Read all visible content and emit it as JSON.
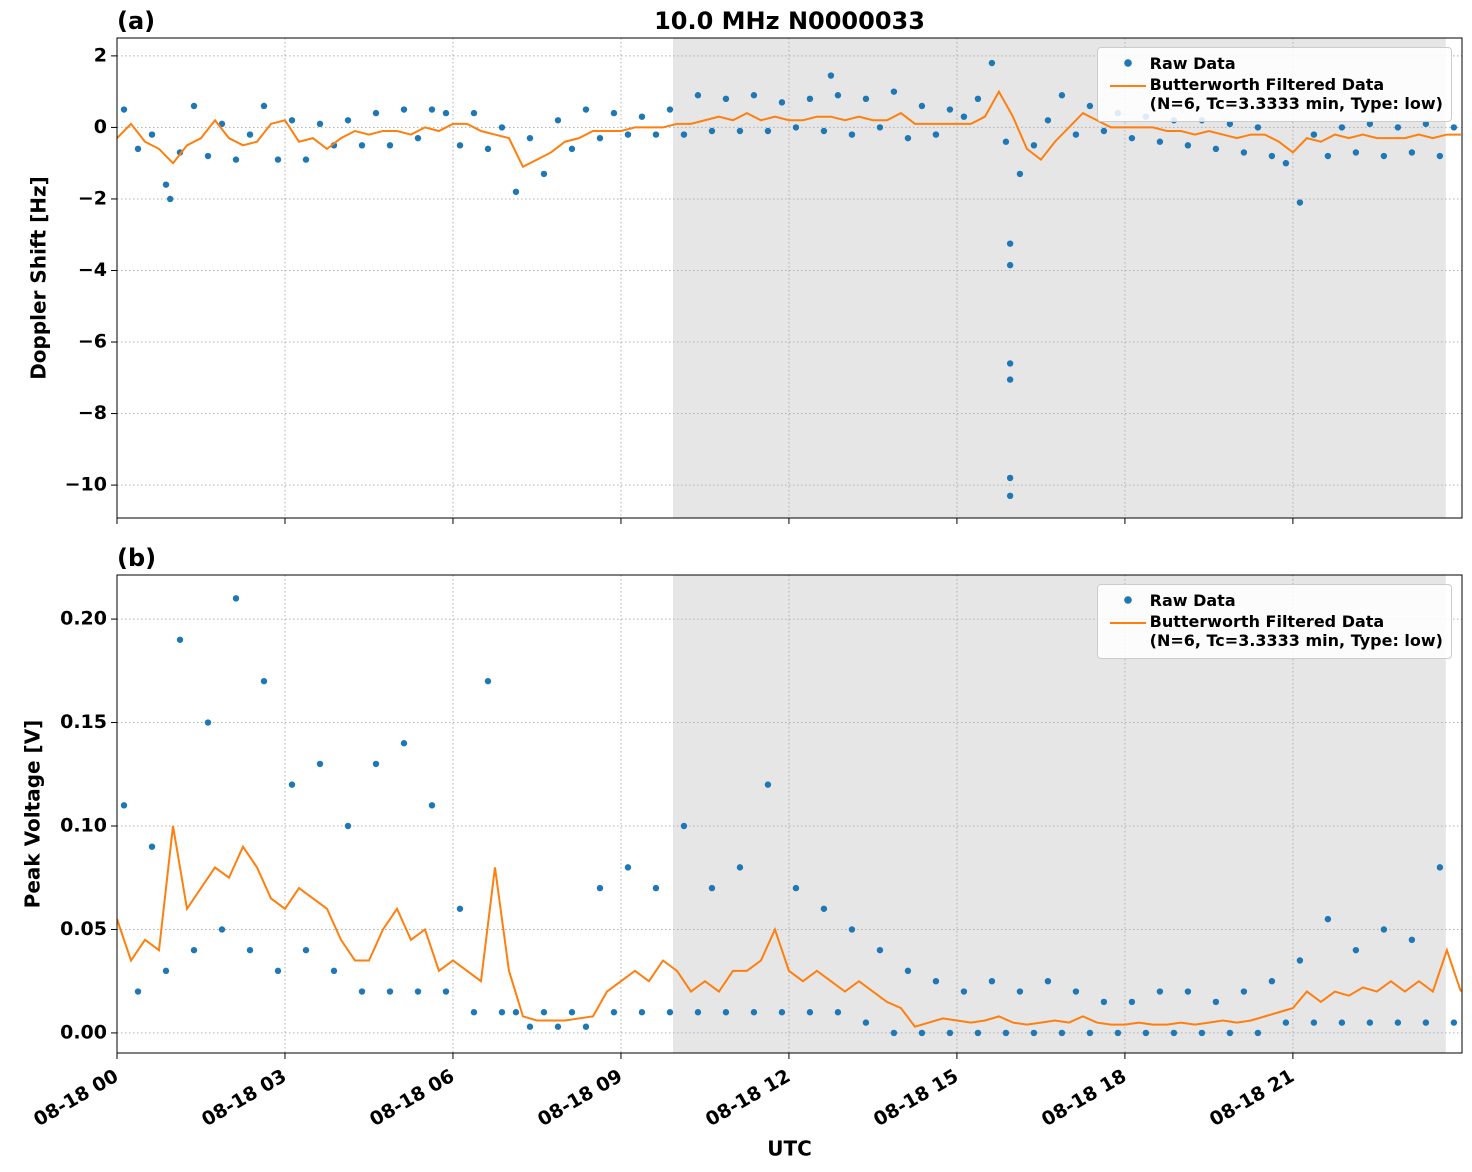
{
  "chart_data": [
    {
      "type": "scatter-line",
      "panel_label": "(a)",
      "title": "10.0 MHz N0000033",
      "ylabel": "Doppler Shift [Hz]",
      "xlim": [
        0,
        24.02
      ],
      "ylim": [
        -10.92,
        2.5
      ],
      "yticks": [
        {
          "value": -10,
          "label": "−10"
        },
        {
          "value": -8,
          "label": "−8"
        },
        {
          "value": -6,
          "label": "−6"
        },
        {
          "value": -4,
          "label": "−4"
        },
        {
          "value": -2,
          "label": "−2"
        },
        0,
        2
      ],
      "grid": true,
      "legend": "upper right",
      "shaded_xspan": [
        9.93,
        23.73
      ],
      "shade_color": "#e6e6e6",
      "series": [
        {
          "name": "Raw Data",
          "kind": "scatter",
          "color": "#1f77b4",
          "x": [
            0.125,
            0.375,
            0.625,
            0.875,
            1.125,
            1.375,
            1.625,
            1.875,
            2.125,
            2.375,
            2.625,
            2.875,
            3.125,
            3.375,
            3.625,
            3.875,
            4.125,
            4.375,
            4.625,
            4.875,
            5.125,
            5.375,
            5.625,
            5.875,
            6.125,
            6.375,
            6.625,
            6.875,
            7.125,
            7.375,
            7.625,
            7.875,
            8.125,
            8.375,
            8.625,
            8.875,
            9.125,
            9.375,
            9.625,
            9.875,
            10.125,
            10.375,
            10.625,
            10.875,
            11.125,
            11.375,
            11.625,
            11.875,
            12.125,
            12.375,
            12.625,
            12.875,
            13.125,
            13.375,
            13.625,
            13.875,
            14.125,
            14.375,
            14.625,
            14.875,
            15.125,
            15.375,
            15.625,
            15.875,
            16.125,
            16.375,
            16.625,
            16.875,
            17.125,
            17.375,
            17.625,
            17.875,
            18.125,
            18.375,
            18.625,
            18.875,
            19.125,
            19.375,
            19.625,
            19.875,
            20.125,
            20.375,
            20.625,
            20.875,
            21.125,
            21.375,
            21.625,
            21.875,
            22.125,
            22.375,
            22.625,
            22.875,
            23.125,
            23.375,
            23.625,
            23.875,
            15.95,
            15.95,
            15.95,
            15.95,
            15.95,
            15.95,
            12.75,
            0.95
          ],
          "values": [
            0.5,
            -0.6,
            -0.2,
            -1.6,
            -0.7,
            0.6,
            -0.8,
            0.1,
            -0.9,
            -0.2,
            0.6,
            -0.9,
            0.2,
            -0.9,
            0.1,
            -0.5,
            0.2,
            -0.5,
            0.4,
            -0.5,
            0.5,
            -0.3,
            0.5,
            0.4,
            -0.5,
            0.4,
            -0.6,
            0.0,
            -1.8,
            -0.3,
            -1.3,
            0.2,
            -0.6,
            0.5,
            -0.3,
            0.4,
            -0.2,
            0.3,
            -0.2,
            0.5,
            -0.2,
            0.9,
            -0.1,
            0.8,
            -0.1,
            0.9,
            -0.1,
            0.7,
            0.0,
            0.8,
            -0.1,
            0.9,
            -0.2,
            0.8,
            0.0,
            1.0,
            -0.3,
            0.6,
            -0.2,
            0.5,
            0.3,
            0.8,
            1.8,
            -0.4,
            -1.3,
            -0.5,
            0.2,
            0.9,
            -0.2,
            0.6,
            -0.1,
            0.4,
            -0.3,
            0.3,
            -0.4,
            0.2,
            -0.5,
            0.2,
            -0.6,
            0.1,
            -0.7,
            0.0,
            -0.8,
            -1.0,
            -2.1,
            -0.2,
            -0.8,
            0.0,
            -0.7,
            0.1,
            -0.8,
            0.0,
            -0.7,
            0.1,
            -0.8,
            0.0,
            -3.25,
            -3.85,
            -6.6,
            -7.05,
            -9.8,
            -10.3,
            1.45,
            -2.0
          ]
        },
        {
          "name": "Butterworth Filtered Data\n(N=6, Tc=3.3333 min, Type: low)",
          "kind": "line",
          "color": "#ff7f0e",
          "x": [
            0,
            0.25,
            0.5,
            0.75,
            1,
            1.25,
            1.5,
            1.75,
            2,
            2.25,
            2.5,
            2.75,
            3,
            3.25,
            3.5,
            3.75,
            4,
            4.25,
            4.5,
            4.75,
            5,
            5.25,
            5.5,
            5.75,
            6,
            6.25,
            6.5,
            6.75,
            7,
            7.25,
            7.5,
            7.75,
            8,
            8.25,
            8.5,
            8.75,
            9,
            9.25,
            9.5,
            9.75,
            10,
            10.25,
            10.5,
            10.75,
            11,
            11.25,
            11.5,
            11.75,
            12,
            12.25,
            12.5,
            12.75,
            13,
            13.25,
            13.5,
            13.75,
            14,
            14.25,
            14.5,
            14.75,
            15,
            15.25,
            15.5,
            15.75,
            16,
            16.25,
            16.5,
            16.75,
            17,
            17.25,
            17.5,
            17.75,
            18,
            18.25,
            18.5,
            18.75,
            19,
            19.25,
            19.5,
            19.75,
            20,
            20.25,
            20.5,
            20.75,
            21,
            21.25,
            21.5,
            21.75,
            22,
            22.25,
            22.5,
            22.75,
            23,
            23.25,
            23.5,
            23.75,
            24
          ],
          "values": [
            -0.3,
            0.1,
            -0.4,
            -0.6,
            -1.0,
            -0.5,
            -0.3,
            0.2,
            -0.3,
            -0.5,
            -0.4,
            0.1,
            0.2,
            -0.4,
            -0.3,
            -0.6,
            -0.3,
            -0.1,
            -0.2,
            -0.1,
            -0.1,
            -0.2,
            0.0,
            -0.1,
            0.1,
            0.1,
            -0.1,
            -0.2,
            -0.3,
            -1.1,
            -0.9,
            -0.7,
            -0.4,
            -0.3,
            -0.1,
            -0.1,
            -0.1,
            0.0,
            0.0,
            0.0,
            0.1,
            0.1,
            0.2,
            0.3,
            0.2,
            0.4,
            0.2,
            0.3,
            0.2,
            0.2,
            0.3,
            0.3,
            0.2,
            0.3,
            0.2,
            0.2,
            0.4,
            0.1,
            0.1,
            0.1,
            0.1,
            0.1,
            0.3,
            1.0,
            0.3,
            -0.6,
            -0.9,
            -0.4,
            0.0,
            0.4,
            0.2,
            0.0,
            0.0,
            0.0,
            0.0,
            -0.1,
            -0.1,
            -0.2,
            -0.1,
            -0.2,
            -0.3,
            -0.2,
            -0.2,
            -0.4,
            -0.7,
            -0.3,
            -0.4,
            -0.2,
            -0.3,
            -0.2,
            -0.3,
            -0.3,
            -0.3,
            -0.2,
            -0.3,
            -0.2,
            -0.2
          ]
        }
      ]
    },
    {
      "type": "scatter-line",
      "panel_label": "(b)",
      "ylabel": "Peak Voltage [V]",
      "xlabel": "UTC",
      "xlim": [
        0,
        24.02
      ],
      "ylim": [
        -0.0097,
        0.2213
      ],
      "xticks": [
        {
          "value": 0,
          "label": "08-18 00"
        },
        {
          "value": 3,
          "label": "08-18 03"
        },
        {
          "value": 6,
          "label": "08-18 06"
        },
        {
          "value": 9,
          "label": "08-18 09"
        },
        {
          "value": 12,
          "label": "08-18 12"
        },
        {
          "value": 15,
          "label": "08-18 15"
        },
        {
          "value": 18,
          "label": "08-18 18"
        },
        {
          "value": 21,
          "label": "08-18 21"
        }
      ],
      "yticks": [
        {
          "value": 0,
          "label": "0.00"
        },
        {
          "value": 0.05,
          "label": "0.05"
        },
        {
          "value": 0.1,
          "label": "0.10"
        },
        0.15,
        {
          "value": 0.2,
          "label": "0.20"
        }
      ],
      "grid": true,
      "legend": "upper right",
      "shaded_xspan": [
        9.93,
        23.73
      ],
      "shade_color": "#e6e6e6",
      "series": [
        {
          "name": "Raw Data",
          "kind": "scatter",
          "color": "#1f77b4",
          "x": [
            0.125,
            0.375,
            0.625,
            0.875,
            1.125,
            1.375,
            1.625,
            1.875,
            2.125,
            2.375,
            2.625,
            2.875,
            3.125,
            3.375,
            3.625,
            3.875,
            4.125,
            4.375,
            4.625,
            4.875,
            5.125,
            5.375,
            5.625,
            5.875,
            6.125,
            6.375,
            6.625,
            6.875,
            7.125,
            7.375,
            7.625,
            7.875,
            8.125,
            8.375,
            8.625,
            8.875,
            9.125,
            9.375,
            9.625,
            9.875,
            10.125,
            10.375,
            10.625,
            10.875,
            11.125,
            11.375,
            11.625,
            11.875,
            12.125,
            12.375,
            12.625,
            12.875,
            13.125,
            13.375,
            13.625,
            13.875,
            14.125,
            14.375,
            14.625,
            14.875,
            15.125,
            15.375,
            15.625,
            15.875,
            16.125,
            16.375,
            16.625,
            16.875,
            17.125,
            17.375,
            17.625,
            17.875,
            18.125,
            18.375,
            18.625,
            18.875,
            19.125,
            19.375,
            19.625,
            19.875,
            20.125,
            20.375,
            20.625,
            20.875,
            21.125,
            21.375,
            21.625,
            21.875,
            22.125,
            22.375,
            22.625,
            22.875,
            23.125,
            23.375,
            23.625,
            23.875
          ],
          "values": [
            0.11,
            0.02,
            0.09,
            0.03,
            0.19,
            0.04,
            0.15,
            0.05,
            0.21,
            0.04,
            0.17,
            0.03,
            0.12,
            0.04,
            0.13,
            0.03,
            0.1,
            0.02,
            0.13,
            0.02,
            0.14,
            0.02,
            0.11,
            0.02,
            0.06,
            0.01,
            0.17,
            0.01,
            0.01,
            0.003,
            0.01,
            0.003,
            0.01,
            0.003,
            0.07,
            0.01,
            0.08,
            0.01,
            0.07,
            0.01,
            0.1,
            0.01,
            0.07,
            0.01,
            0.08,
            0.01,
            0.12,
            0.01,
            0.07,
            0.01,
            0.06,
            0.01,
            0.05,
            0.005,
            0.04,
            0.0,
            0.03,
            0.0,
            0.025,
            0.0,
            0.02,
            0.0,
            0.025,
            0.0,
            0.02,
            0.0,
            0.025,
            0.0,
            0.02,
            0.0,
            0.015,
            0.0,
            0.015,
            0.0,
            0.02,
            0.0,
            0.02,
            0.0,
            0.015,
            0.0,
            0.02,
            0.0,
            0.025,
            0.005,
            0.035,
            0.005,
            0.055,
            0.005,
            0.04,
            0.005,
            0.05,
            0.005,
            0.045,
            0.005,
            0.08,
            0.005
          ]
        },
        {
          "name": "Butterworth Filtered Data\n(N=6, Tc=3.3333 min, Type: low)",
          "kind": "line",
          "color": "#ff7f0e",
          "x": [
            0,
            0.25,
            0.5,
            0.75,
            1,
            1.25,
            1.5,
            1.75,
            2,
            2.25,
            2.5,
            2.75,
            3,
            3.25,
            3.5,
            3.75,
            4,
            4.25,
            4.5,
            4.75,
            5,
            5.25,
            5.5,
            5.75,
            6,
            6.25,
            6.5,
            6.75,
            7,
            7.25,
            7.5,
            7.75,
            8,
            8.25,
            8.5,
            8.75,
            9,
            9.25,
            9.5,
            9.75,
            10,
            10.25,
            10.5,
            10.75,
            11,
            11.25,
            11.5,
            11.75,
            12,
            12.25,
            12.5,
            12.75,
            13,
            13.25,
            13.5,
            13.75,
            14,
            14.25,
            14.5,
            14.75,
            15,
            15.25,
            15.5,
            15.75,
            16,
            16.25,
            16.5,
            16.75,
            17,
            17.25,
            17.5,
            17.75,
            18,
            18.25,
            18.5,
            18.75,
            19,
            19.25,
            19.5,
            19.75,
            20,
            20.25,
            20.5,
            20.75,
            21,
            21.25,
            21.5,
            21.75,
            22,
            22.25,
            22.5,
            22.75,
            23,
            23.25,
            23.5,
            23.75,
            24
          ],
          "values": [
            0.055,
            0.035,
            0.045,
            0.04,
            0.1,
            0.06,
            0.07,
            0.08,
            0.075,
            0.09,
            0.08,
            0.065,
            0.06,
            0.07,
            0.065,
            0.06,
            0.045,
            0.035,
            0.035,
            0.05,
            0.06,
            0.045,
            0.05,
            0.03,
            0.035,
            0.03,
            0.025,
            0.08,
            0.03,
            0.008,
            0.006,
            0.006,
            0.006,
            0.007,
            0.008,
            0.02,
            0.025,
            0.03,
            0.025,
            0.035,
            0.03,
            0.02,
            0.025,
            0.02,
            0.03,
            0.03,
            0.035,
            0.05,
            0.03,
            0.025,
            0.03,
            0.025,
            0.02,
            0.025,
            0.02,
            0.015,
            0.012,
            0.003,
            0.005,
            0.007,
            0.006,
            0.005,
            0.006,
            0.008,
            0.005,
            0.004,
            0.005,
            0.006,
            0.005,
            0.008,
            0.005,
            0.004,
            0.004,
            0.005,
            0.004,
            0.004,
            0.005,
            0.004,
            0.005,
            0.006,
            0.005,
            0.006,
            0.008,
            0.01,
            0.012,
            0.02,
            0.015,
            0.02,
            0.018,
            0.022,
            0.02,
            0.025,
            0.02,
            0.025,
            0.02,
            0.04,
            0.02
          ]
        }
      ]
    }
  ]
}
